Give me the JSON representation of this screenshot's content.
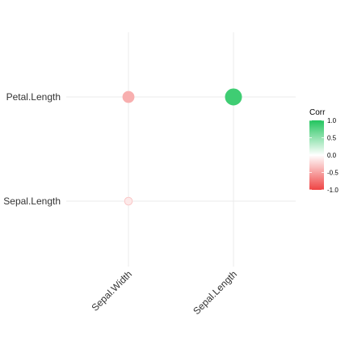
{
  "chart_data": {
    "type": "scatter",
    "title": "",
    "xlabel": "",
    "ylabel": "",
    "x_categories": [
      "Sepal.Width",
      "Sepal.Length"
    ],
    "y_categories": [
      "Sepal.Length",
      "Petal.Length"
    ],
    "points": [
      {
        "x": "Sepal.Width",
        "y": "Petal.Length",
        "value": -0.43
      },
      {
        "x": "Sepal.Length",
        "y": "Petal.Length",
        "value": 0.87
      },
      {
        "x": "Sepal.Width",
        "y": "Sepal.Length",
        "value": -0.12
      }
    ],
    "grid": true,
    "legend": {
      "title": "Corr",
      "placement": "right",
      "ticks": [
        1.0,
        0.5,
        0.0,
        -0.5,
        -1.0
      ],
      "tick_labels": [
        "1.0",
        "0.5",
        "0.0",
        "-0.5",
        "-1.0"
      ],
      "colors": {
        "high": "#22c55e",
        "mid": "#ffffff",
        "low": "#ef4444"
      }
    }
  }
}
